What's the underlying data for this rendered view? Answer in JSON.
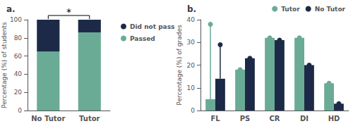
{
  "chart_data": [
    {
      "type": "bar",
      "title": "a.",
      "stacked": true,
      "categories": [
        "No Tutor",
        "Tutor"
      ],
      "series": [
        {
          "name": "Passed",
          "color": "#6aab96",
          "values": [
            65,
            86
          ]
        },
        {
          "name": "Did not pass",
          "color": "#1c2a47",
          "values": [
            35,
            14
          ]
        }
      ],
      "ylabel": "Percentage (%) of students",
      "ylim": [
        0,
        100
      ],
      "yticks": [
        0,
        20,
        40,
        60,
        80,
        100
      ],
      "grid": false,
      "legend": "right",
      "annotations": [
        "*"
      ]
    },
    {
      "type": "bar",
      "title": "b.",
      "categories": [
        "FL",
        "PS",
        "CR",
        "DI",
        "HD"
      ],
      "series": [
        {
          "name": "Tutor",
          "color": "#6aab96",
          "values": [
            5,
            18,
            32,
            32,
            12
          ],
          "dot_values": [
            38,
            18,
            32,
            32,
            12
          ]
        },
        {
          "name": "No Tutor",
          "color": "#1c2a47",
          "values": [
            14,
            23,
            31,
            20,
            3
          ],
          "dot_values": [
            29,
            23,
            31,
            20,
            3
          ]
        }
      ],
      "ylabel": "Percentage (%) of grades",
      "ylim": [
        0,
        40
      ],
      "yticks": [
        0,
        10,
        20,
        30,
        40
      ],
      "grid": false,
      "legend": "upper right"
    }
  ]
}
